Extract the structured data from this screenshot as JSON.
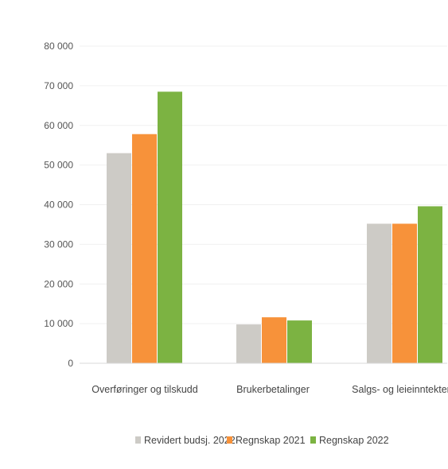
{
  "chart_data": {
    "type": "bar",
    "categories": [
      "Overføringer og tilskudd",
      "Brukerbetalinger",
      "Salgs- og leieinntekter"
    ],
    "series": [
      {
        "name": "Revidert budsj. 2022",
        "color": "#cdcbc6",
        "values": [
          53000,
          9800,
          35200
        ]
      },
      {
        "name": "Regnskap 2021",
        "color": "#f7923a",
        "values": [
          57800,
          11600,
          35200
        ]
      },
      {
        "name": "Regnskap 2022",
        "color": "#7cb342",
        "values": [
          68500,
          10800,
          39600
        ]
      }
    ],
    "ylim": [
      0,
      80000
    ],
    "yticks": [
      "0",
      "10 000",
      "20 000",
      "30 000",
      "40 000",
      "50 000",
      "60 000",
      "70 000",
      "80 000"
    ],
    "grid": true,
    "legend_position": "bottom"
  }
}
